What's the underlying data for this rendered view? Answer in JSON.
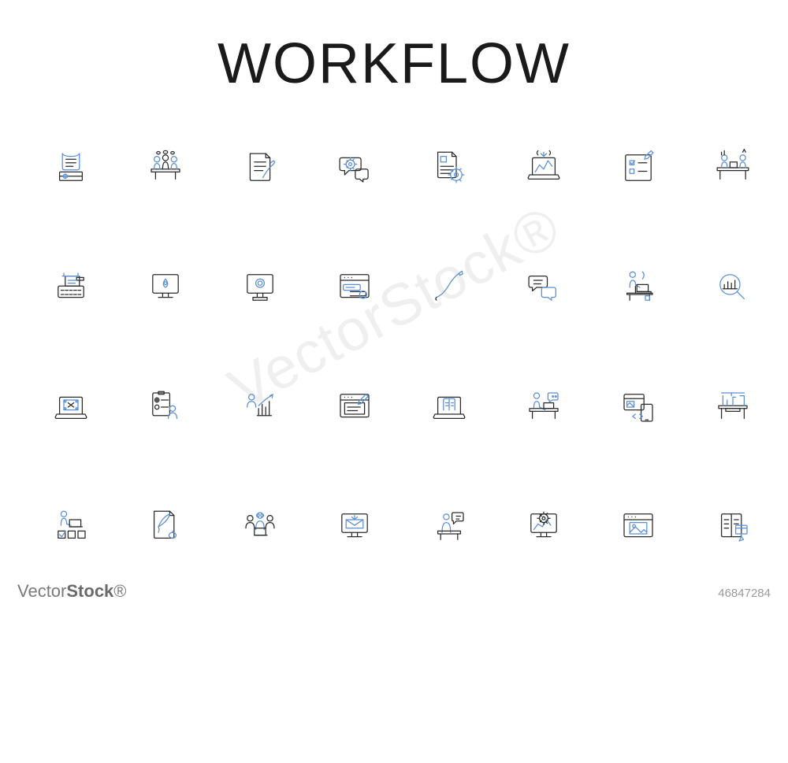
{
  "title": "WORKFLOW",
  "colors": {
    "primary": "#2a2a2a",
    "accent": "#5a8fd8",
    "background": "#ffffff",
    "watermark": "rgba(140,140,140,0.14)",
    "footer": "#7a7a7a",
    "imageId": "#9a9a9a"
  },
  "grid": {
    "rows": 4,
    "cols": 8,
    "gap_h": 60,
    "gap_v": 50
  },
  "stroke_width": 1.4,
  "icons": [
    {
      "name": "certificate-icon"
    },
    {
      "name": "meeting-icon"
    },
    {
      "name": "sign-document-icon"
    },
    {
      "name": "chat-gear-icon"
    },
    {
      "name": "document-gear-icon"
    },
    {
      "name": "laptop-analytics-icon"
    },
    {
      "name": "checklist-edit-icon"
    },
    {
      "name": "workstation-icon"
    },
    {
      "name": "typewriter-icon"
    },
    {
      "name": "monitor-location-icon"
    },
    {
      "name": "monitor-link-icon"
    },
    {
      "name": "browser-chat-icon"
    },
    {
      "name": "fountain-pen-icon"
    },
    {
      "name": "chat-bubbles-icon"
    },
    {
      "name": "person-laptop-icon"
    },
    {
      "name": "search-analytics-icon"
    },
    {
      "name": "laptop-design-icon"
    },
    {
      "name": "clipboard-user-icon"
    },
    {
      "name": "user-growth-icon"
    },
    {
      "name": "browser-write-icon"
    },
    {
      "name": "laptop-book-icon"
    },
    {
      "name": "user-chat-desk-icon"
    },
    {
      "name": "device-sync-icon"
    },
    {
      "name": "desk-tools-icon"
    },
    {
      "name": "user-checklist-icon"
    },
    {
      "name": "quill-document-icon"
    },
    {
      "name": "team-icon"
    },
    {
      "name": "monitor-mail-icon"
    },
    {
      "name": "user-speech-icon"
    },
    {
      "name": "monitor-gear-icon"
    },
    {
      "name": "browser-image-icon"
    },
    {
      "name": "book-click-icon"
    }
  ],
  "watermark": "VectorStock®",
  "footer": {
    "brand_light": "Vector",
    "brand_bold": "Stock",
    "suffix": "®"
  },
  "image_id": "46847284"
}
